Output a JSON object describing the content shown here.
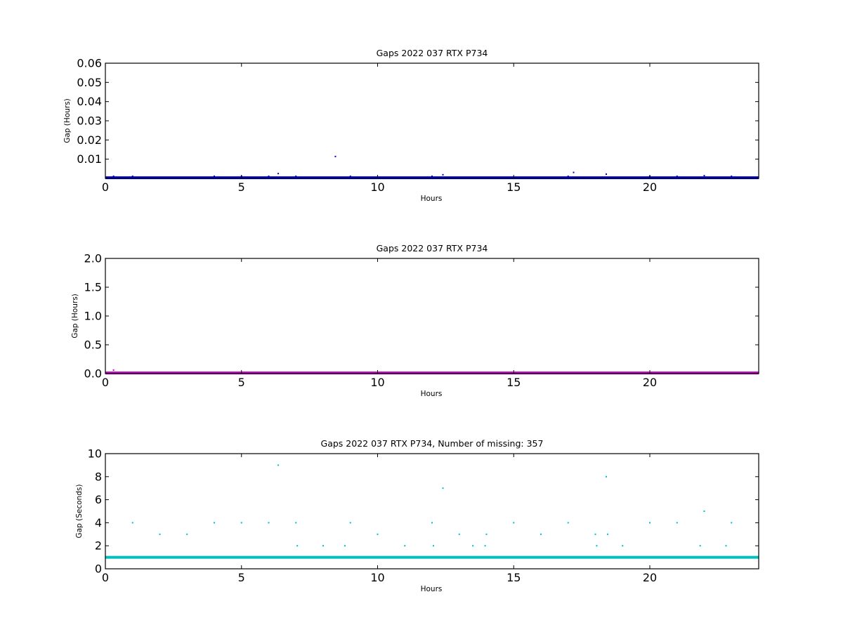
{
  "chart_data": [
    {
      "type": "scatter",
      "title": "Gaps 2022 037 RTX  P734",
      "xlabel": "Hours",
      "ylabel": "Gap (Hours)",
      "xlim": [
        0,
        24
      ],
      "ylim": [
        0,
        0.06
      ],
      "xticks": [
        0,
        5,
        10,
        15,
        20
      ],
      "xtick_labels": [
        "0",
        "5",
        "10",
        "15",
        "20"
      ],
      "yticks": [
        0.01,
        0.02,
        0.03,
        0.04,
        0.05,
        0.06
      ],
      "ytick_labels": [
        "0.01",
        "0.02",
        "0.03",
        "0.04",
        "0.05",
        "0.06"
      ],
      "grid": false,
      "color": "#0000cc",
      "baseline": {
        "y": 0.0003,
        "x_range": [
          0,
          24
        ]
      },
      "series": [
        {
          "x": [
            0.3,
            1.0,
            4.0,
            5.0,
            6.0,
            6.35,
            7.0,
            8.45,
            9.0,
            12.0,
            12.4,
            17.0,
            17.2,
            18.4,
            20.0,
            21.0,
            22.0,
            23.0
          ],
          "y": [
            0.0011,
            0.0011,
            0.0011,
            0.0011,
            0.0011,
            0.0025,
            0.0011,
            0.0114,
            0.0011,
            0.0011,
            0.0019,
            0.0011,
            0.0031,
            0.0022,
            0.0011,
            0.0011,
            0.0014,
            0.0011
          ]
        }
      ]
    },
    {
      "type": "scatter",
      "title": "Gaps 2022 037 RTX  P734",
      "xlabel": "Hours",
      "ylabel": "Gap (Hours)",
      "xlim": [
        0,
        24
      ],
      "ylim": [
        0,
        2.0
      ],
      "xticks": [
        0,
        5,
        10,
        15,
        20
      ],
      "xtick_labels": [
        "0",
        "5",
        "10",
        "15",
        "20"
      ],
      "yticks": [
        0,
        0.5,
        1.0,
        1.5,
        2.0
      ],
      "ytick_labels": [
        "0.0",
        "0.5",
        "1.0",
        "1.5",
        "2.0"
      ],
      "grid": false,
      "color": "#bf00bf",
      "baseline": {
        "y": 0.01,
        "x_range": [
          0,
          24
        ]
      },
      "series": [
        {
          "x": [
            0.3
          ],
          "y": [
            0.06
          ]
        }
      ]
    },
    {
      "type": "scatter",
      "title": "Gaps 2022 037 RTX  P734, Number of missing: 357",
      "xlabel": "Hours",
      "ylabel": "Gap (Seconds)",
      "xlim": [
        0,
        24
      ],
      "ylim": [
        0,
        10
      ],
      "xticks": [
        0,
        5,
        10,
        15,
        20
      ],
      "xtick_labels": [
        "0",
        "5",
        "10",
        "15",
        "20"
      ],
      "yticks": [
        0,
        2,
        4,
        6,
        8,
        10
      ],
      "ytick_labels": [
        "0",
        "2",
        "4",
        "6",
        "8",
        "10"
      ],
      "grid": false,
      "color": "#00bfbf",
      "baseline": {
        "y": 1,
        "x_range": [
          0,
          24
        ]
      },
      "series": [
        {
          "x": [
            0.3,
            1.0,
            2.0,
            3.0,
            4.0,
            5.0,
            6.0,
            6.35,
            7.0,
            7.05,
            8.0,
            8.8,
            9.0,
            10.0,
            11.0,
            12.0,
            12.05,
            12.4,
            13.0,
            13.5,
            13.95,
            14.0,
            15.0,
            16.0,
            17.0,
            18.0,
            18.05,
            18.4,
            18.45,
            19.0,
            20.0,
            21.0,
            21.85,
            22.0,
            22.8,
            23.0
          ],
          "y": [
            1,
            4,
            3,
            3,
            4,
            4,
            4,
            9,
            4,
            2,
            2,
            2,
            4,
            3,
            2,
            4,
            2,
            7,
            3,
            2,
            2,
            3,
            4,
            3,
            4,
            3,
            2,
            8,
            3,
            2,
            4,
            4,
            2,
            5,
            2,
            4
          ]
        }
      ]
    }
  ]
}
